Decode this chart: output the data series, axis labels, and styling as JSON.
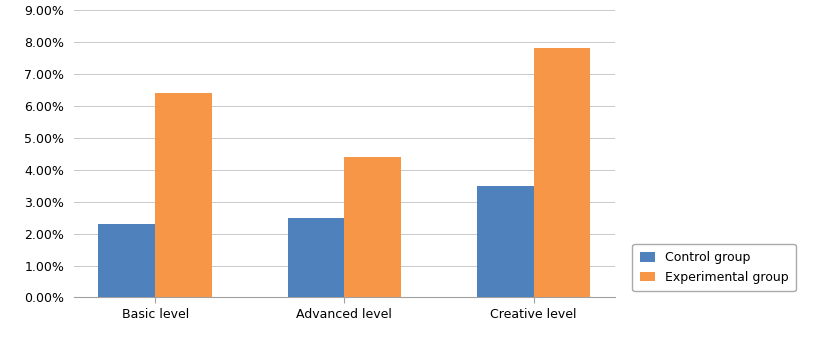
{
  "categories": [
    "Basic level",
    "Advanced level",
    "Creative level"
  ],
  "control_values": [
    0.023,
    0.025,
    0.035
  ],
  "experimental_values": [
    0.064,
    0.044,
    0.078
  ],
  "control_color": "#4F81BD",
  "experimental_color": "#F79646",
  "control_label": "Control group",
  "experimental_label": "Experimental group",
  "ylim": [
    0,
    0.09
  ],
  "yticks": [
    0.0,
    0.01,
    0.02,
    0.03,
    0.04,
    0.05,
    0.06,
    0.07,
    0.08,
    0.09
  ],
  "bar_width": 0.3,
  "background_color": "#ffffff",
  "grid_color": "#c0c0c0",
  "legend_fontsize": 9,
  "tick_fontsize": 9
}
